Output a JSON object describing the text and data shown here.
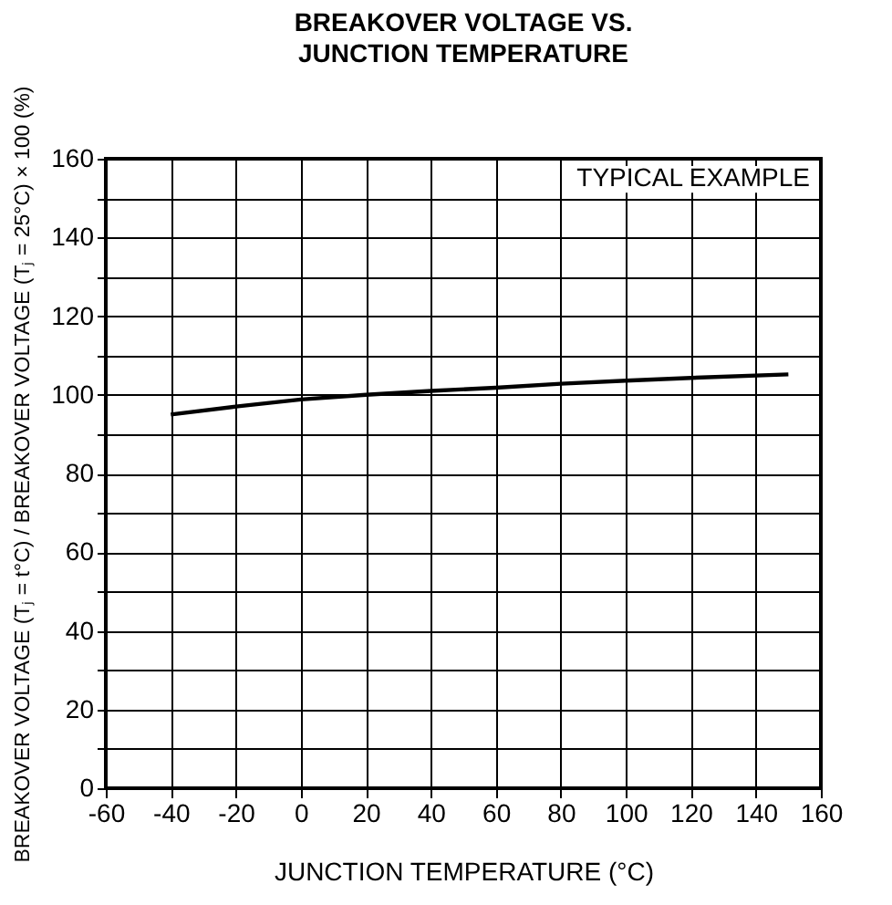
{
  "chart_data": {
    "type": "line",
    "title": "BREAKOVER VOLTAGE VS.\nJUNCTION TEMPERATURE",
    "xlabel": "JUNCTION TEMPERATURE  (°C)",
    "ylabel": "BREAKOVER VOLTAGE (Tⱼ = t°C) / BREAKOVER VOLTAGE (Tⱼ = 25°C)  × 100 (%)",
    "annotations": [
      "TYPICAL EXAMPLE"
    ],
    "x": [
      -40,
      -20,
      0,
      20,
      40,
      60,
      80,
      100,
      120,
      150
    ],
    "series": [
      {
        "color": "#000000",
        "values": [
          95,
          97,
          98.8,
          100,
          101,
          101.8,
          102.8,
          103.6,
          104.3,
          105.2
        ]
      }
    ],
    "xlim": [
      -60,
      160
    ],
    "xticks": [
      -60,
      -40,
      -20,
      0,
      20,
      40,
      60,
      80,
      100,
      120,
      140,
      160
    ],
    "ylim": [
      0,
      160
    ],
    "yticks": [
      0,
      {
        "value": 10,
        "label": null
      },
      20,
      {
        "value": 30,
        "label": null
      },
      40,
      {
        "value": 50,
        "label": null
      },
      60,
      {
        "value": 70,
        "label": null
      },
      80,
      {
        "value": 90,
        "label": null
      },
      100,
      {
        "value": 110,
        "label": null
      },
      120,
      {
        "value": 130,
        "label": null
      },
      140,
      {
        "value": 150,
        "label": null
      },
      160
    ],
    "grid": true,
    "marker": "none",
    "line_style": "solid"
  }
}
